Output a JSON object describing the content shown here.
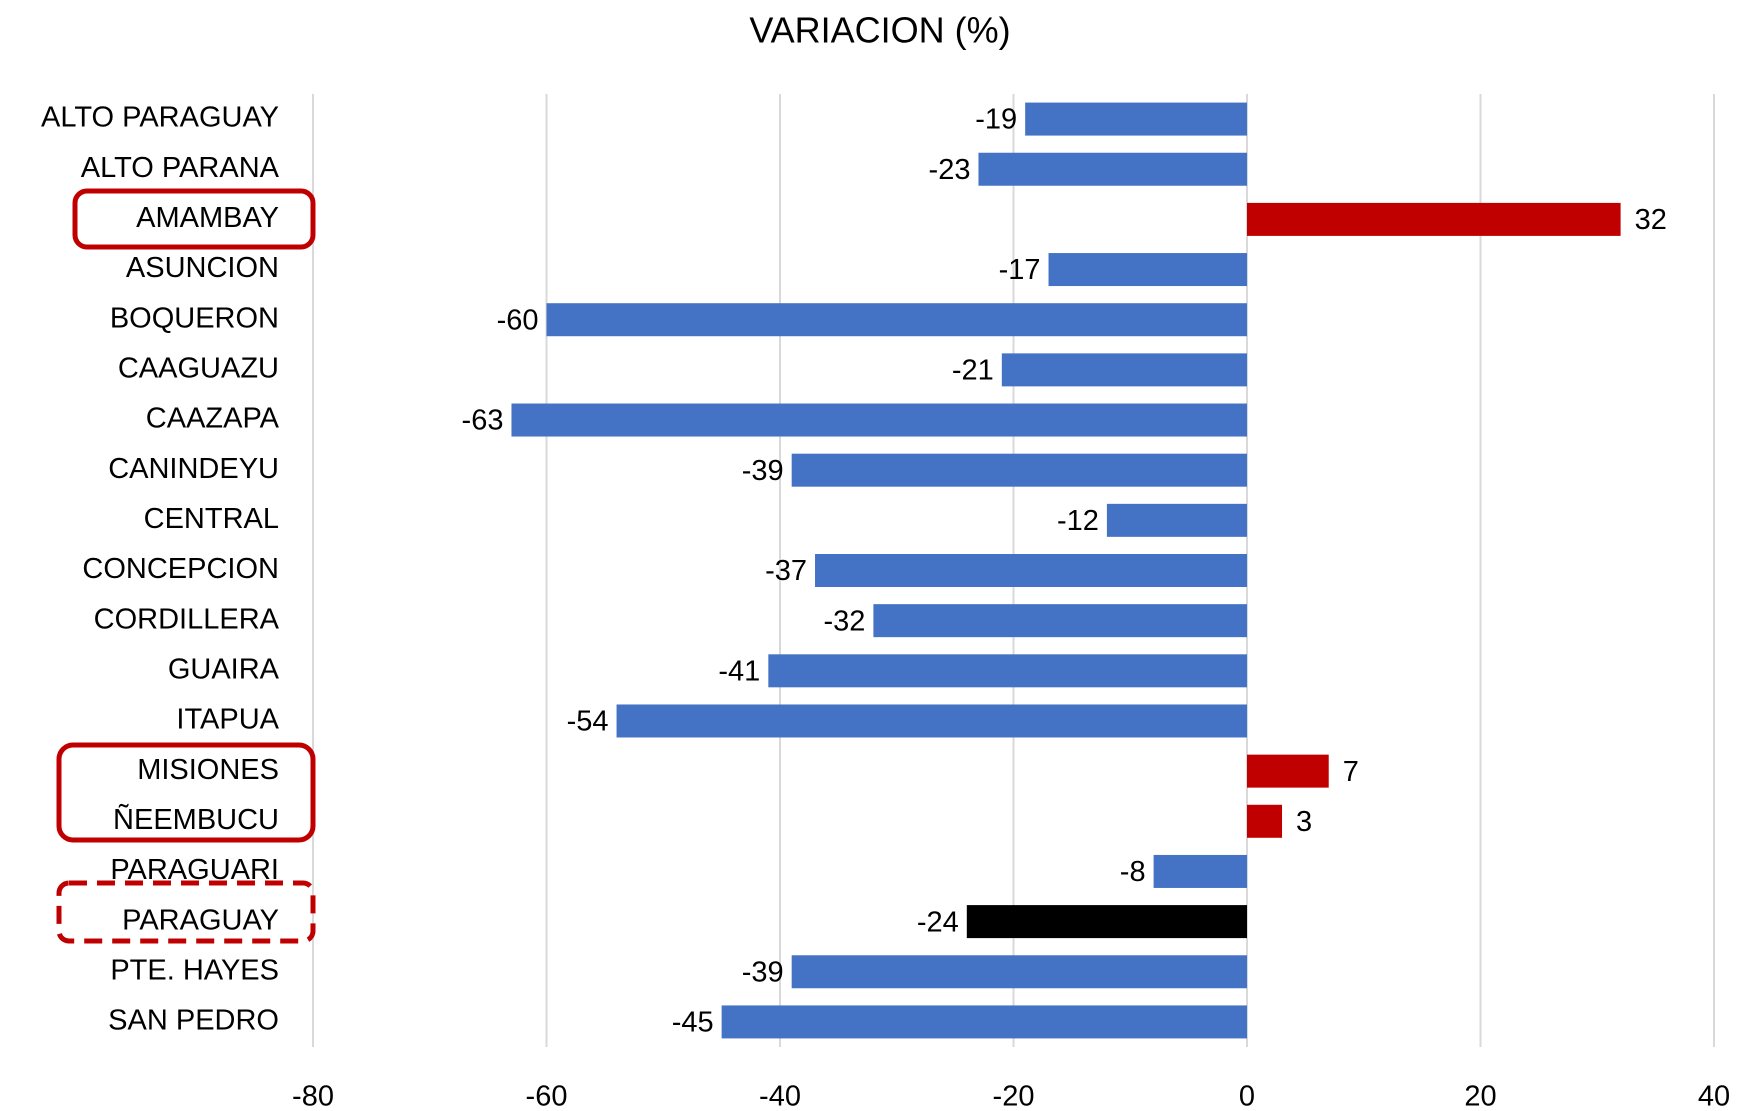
{
  "chart_data": {
    "type": "bar",
    "orientation": "horizontal",
    "title": "VARIACION (%)",
    "categories": [
      "ALTO PARAGUAY",
      "ALTO PARANA",
      "AMAMBAY",
      "ASUNCION",
      "BOQUERON",
      "CAAGUAZU",
      "CAAZAPA",
      "CANINDEYU",
      "CENTRAL",
      "CONCEPCION",
      "CORDILLERA",
      "GUAIRA",
      "ITAPUA",
      "MISIONES",
      "ÑEEMBUCU",
      "PARAGUARI",
      "PARAGUAY",
      "PTE. HAYES",
      "SAN PEDRO"
    ],
    "values": [
      -19,
      -23,
      32,
      -17,
      -60,
      -21,
      -63,
      -39,
      -12,
      -37,
      -32,
      -41,
      -54,
      7,
      3,
      -8,
      -24,
      -39,
      -45
    ],
    "colors": [
      "#4472c4",
      "#4472c4",
      "#c00000",
      "#4472c4",
      "#4472c4",
      "#4472c4",
      "#4472c4",
      "#4472c4",
      "#4472c4",
      "#4472c4",
      "#4472c4",
      "#4472c4",
      "#4472c4",
      "#c00000",
      "#c00000",
      "#4472c4",
      "#000000",
      "#4472c4",
      "#4472c4"
    ],
    "xlim": [
      -80,
      40
    ],
    "xticks": [
      -80,
      -60,
      -40,
      -20,
      0,
      20,
      40
    ],
    "grid": true
  }
}
